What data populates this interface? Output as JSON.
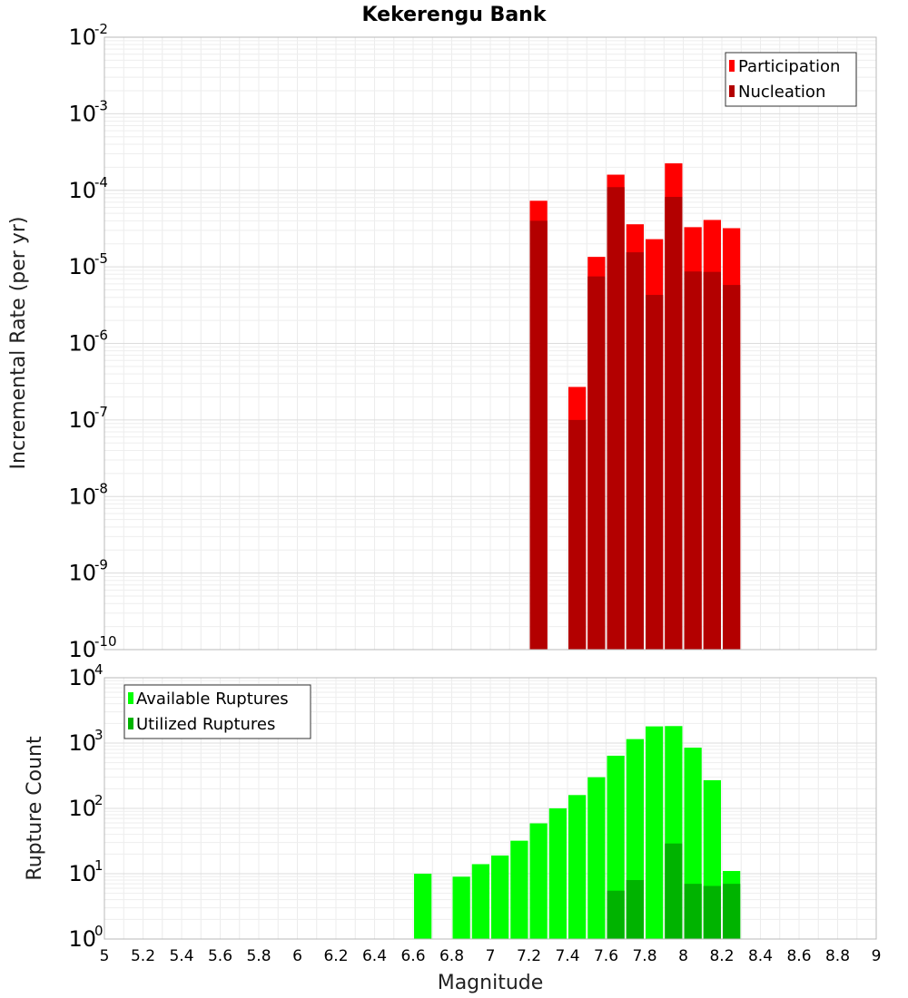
{
  "chart_data": [
    {
      "type": "bar",
      "title": "Kekerengu Bank",
      "xlabel": "Magnitude",
      "ylabel": "Incremental Rate (per yr)",
      "yscale": "log",
      "ylim_exp": [
        -10,
        -2
      ],
      "xlim": [
        5,
        9
      ],
      "legend_position": "top-right",
      "categories": [
        7.25,
        7.45,
        7.55,
        7.65,
        7.75,
        7.85,
        7.95,
        8.05,
        8.15,
        8.25
      ],
      "series": [
        {
          "name": "Participation",
          "color": "#ff0000",
          "values": [
            7.3e-05,
            2.7e-07,
            1.35e-05,
            0.00016,
            3.6e-05,
            2.3e-05,
            0.000225,
            3.3e-05,
            4.1e-05,
            3.2e-05
          ]
        },
        {
          "name": "Nucleation",
          "color": "#b30000",
          "values": [
            4e-05,
            1e-07,
            7.5e-06,
            0.00011,
            1.55e-05,
            4.3e-06,
            8.2e-05,
            8.7e-06,
            8.6e-06,
            5.8e-06
          ]
        }
      ]
    },
    {
      "type": "bar",
      "title": "",
      "xlabel": "Magnitude",
      "ylabel": "Rupture Count",
      "yscale": "log",
      "ylim_exp": [
        0,
        4
      ],
      "xlim": [
        5,
        9
      ],
      "legend_position": "top-left",
      "categories": [
        6.65,
        6.85,
        6.95,
        7.05,
        7.15,
        7.25,
        7.35,
        7.45,
        7.55,
        7.65,
        7.75,
        7.85,
        7.95,
        8.05,
        8.15,
        8.25
      ],
      "series": [
        {
          "name": "Available Ruptures",
          "color": "#00ff00",
          "values": [
            10,
            9,
            14,
            19,
            32,
            59,
            100,
            160,
            300,
            640,
            1150,
            1800,
            1820,
            850,
            270,
            11
          ]
        },
        {
          "name": "Utilized Ruptures",
          "color": "#00b300",
          "values": [
            0,
            0,
            0,
            0,
            0,
            1,
            0,
            1,
            1,
            5.5,
            8,
            1,
            29,
            7,
            6.5,
            7
          ]
        }
      ]
    }
  ],
  "x_ticks": [
    "5",
    "5.2",
    "5.4",
    "5.6",
    "5.8",
    "6",
    "6.2",
    "6.4",
    "6.6",
    "6.8",
    "7",
    "7.2",
    "7.4",
    "7.6",
    "7.8",
    "8",
    "8.2",
    "8.4",
    "8.6",
    "8.8",
    "9"
  ],
  "top_y_ticks": [
    {
      "base": "10",
      "exp": "-2"
    },
    {
      "base": "10",
      "exp": "-3"
    },
    {
      "base": "10",
      "exp": "-4"
    },
    {
      "base": "10",
      "exp": "-5"
    },
    {
      "base": "10",
      "exp": "-6"
    },
    {
      "base": "10",
      "exp": "-7"
    },
    {
      "base": "10",
      "exp": "-8"
    },
    {
      "base": "10",
      "exp": "-9"
    },
    {
      "base": "10",
      "exp": "-10"
    }
  ],
  "bottom_y_ticks": [
    {
      "base": "10",
      "exp": "4"
    },
    {
      "base": "10",
      "exp": "3"
    },
    {
      "base": "10",
      "exp": "2"
    },
    {
      "base": "10",
      "exp": "1"
    },
    {
      "base": "10",
      "exp": "0"
    }
  ]
}
